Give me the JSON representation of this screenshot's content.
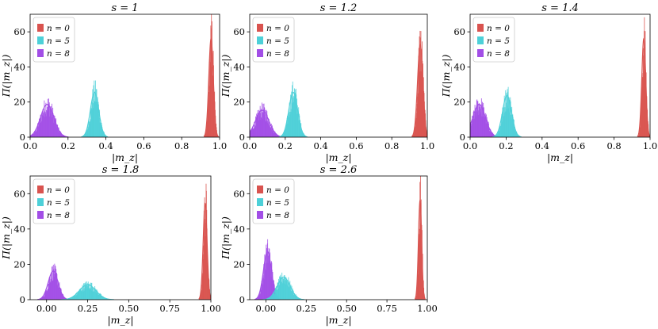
{
  "figure": {
    "series_colors": {
      "n = 0": "#d9534f",
      "n = 5": "#4dd0d8",
      "n = 8": "#a24ee6"
    }
  },
  "chart_data": [
    {
      "type": "bar",
      "title": "s = 1",
      "xlabel": "|m_z|",
      "ylabel": "Π(|m_z|)",
      "xlim": [
        0.0,
        1.0
      ],
      "ylim": [
        0,
        70
      ],
      "xticks": [
        0.0,
        0.2,
        0.4,
        0.6,
        0.8,
        1.0
      ],
      "xtick_labels": [
        "0.0",
        "0.2",
        "0.4",
        "0.6",
        "0.8",
        "1.0"
      ],
      "yticks": [
        0,
        20,
        40,
        60
      ],
      "yticks_labels": [
        "0",
        "20",
        "40",
        "60"
      ],
      "legend": {
        "position": "top-left",
        "entries": [
          "n = 0",
          "n = 5",
          "n = 8"
        ]
      },
      "series": [
        {
          "name": "n = 0",
          "center": 0.955,
          "width": 0.012,
          "peak": 66
        },
        {
          "name": "n = 5",
          "center": 0.34,
          "width": 0.022,
          "peak": 30
        },
        {
          "name": "n = 8",
          "center": 0.09,
          "width": 0.035,
          "peak": 22
        }
      ]
    },
    {
      "type": "bar",
      "title": "s = 1.2",
      "xlabel": "|m_z|",
      "ylabel": "Π(|m_z|)",
      "xlim": [
        0.0,
        1.0
      ],
      "ylim": [
        0,
        70
      ],
      "xticks": [
        0.0,
        0.2,
        0.4,
        0.6,
        0.8,
        1.0
      ],
      "xtick_labels": [
        "0.0",
        "0.2",
        "0.4",
        "0.6",
        "0.8",
        "1.0"
      ],
      "yticks": [
        0,
        20,
        40,
        60
      ],
      "yticks_labels": [
        "0",
        "20",
        "40",
        "60"
      ],
      "legend": {
        "position": "top-left",
        "entries": [
          "n = 0",
          "n = 5",
          "n = 8"
        ]
      },
      "series": [
        {
          "name": "n = 0",
          "center": 0.96,
          "width": 0.015,
          "peak": 62
        },
        {
          "name": "n = 5",
          "center": 0.245,
          "width": 0.025,
          "peak": 30
        },
        {
          "name": "n = 8",
          "center": 0.07,
          "width": 0.038,
          "peak": 18
        }
      ]
    },
    {
      "type": "bar",
      "title": "s = 1.4",
      "xlabel": "|m_z|",
      "ylabel": "Π(|m_z|)",
      "xlim": [
        0.0,
        1.0
      ],
      "ylim": [
        0,
        70
      ],
      "xticks": [
        0.0,
        0.2,
        0.4,
        0.6,
        0.8,
        1.0
      ],
      "xtick_labels": [
        "0.0",
        "0.2",
        "0.4",
        "0.6",
        "0.8",
        "1.0"
      ],
      "yticks": [
        0,
        20,
        40,
        60
      ],
      "yticks_labels": [
        "0",
        "20",
        "40",
        "60"
      ],
      "legend": {
        "position": "top-left",
        "entries": [
          "n = 0",
          "n = 5",
          "n = 8"
        ]
      },
      "series": [
        {
          "name": "n = 0",
          "center": 0.965,
          "width": 0.011,
          "peak": 66
        },
        {
          "name": "n = 5",
          "center": 0.205,
          "width": 0.025,
          "peak": 28
        },
        {
          "name": "n = 8",
          "center": 0.05,
          "width": 0.035,
          "peak": 22
        }
      ]
    },
    {
      "type": "bar",
      "title": "s = 1.8",
      "xlabel": "|m_z|",
      "ylabel": "Π(|m_z|)",
      "xlim": [
        -0.1,
        1.0
      ],
      "ylim": [
        0,
        70
      ],
      "xticks": [
        0.0,
        0.25,
        0.5,
        0.75,
        1.0
      ],
      "xtick_labels": [
        "0.00",
        "0.25",
        "0.50",
        "0.75",
        "1.00"
      ],
      "yticks": [
        0,
        20,
        40,
        60
      ],
      "yticks_labels": [
        "0",
        "20",
        "40",
        "60"
      ],
      "legend": {
        "position": "top-left",
        "entries": [
          "n = 0",
          "n = 5",
          "n = 8"
        ]
      },
      "series": [
        {
          "name": "n = 0",
          "center": 0.965,
          "width": 0.012,
          "peak": 64
        },
        {
          "name": "n = 5",
          "center": 0.25,
          "width": 0.05,
          "peak": 10
        },
        {
          "name": "n = 8",
          "center": 0.04,
          "width": 0.03,
          "peak": 19
        }
      ]
    },
    {
      "type": "bar",
      "title": "s = 2.6",
      "xlabel": "|m_z|",
      "ylabel": "Π(|m_z|)",
      "xlim": [
        -0.1,
        1.0
      ],
      "ylim": [
        0,
        70
      ],
      "xticks": [
        0.0,
        0.25,
        0.5,
        0.75,
        1.0
      ],
      "xtick_labels": [
        "0.00",
        "0.25",
        "0.50",
        "0.75",
        "1.00"
      ],
      "yticks": [
        0,
        20,
        40,
        60
      ],
      "yticks_labels": [
        "0",
        "20",
        "40",
        "60"
      ],
      "legend": {
        "position": "top-left",
        "entries": [
          "n = 0",
          "n = 5",
          "n = 8"
        ]
      },
      "series": [
        {
          "name": "n = 0",
          "center": 0.955,
          "width": 0.01,
          "peak": 66
        },
        {
          "name": "n = 5",
          "center": 0.11,
          "width": 0.04,
          "peak": 15
        },
        {
          "name": "n = 8",
          "center": 0.01,
          "width": 0.025,
          "peak": 32
        }
      ]
    }
  ]
}
